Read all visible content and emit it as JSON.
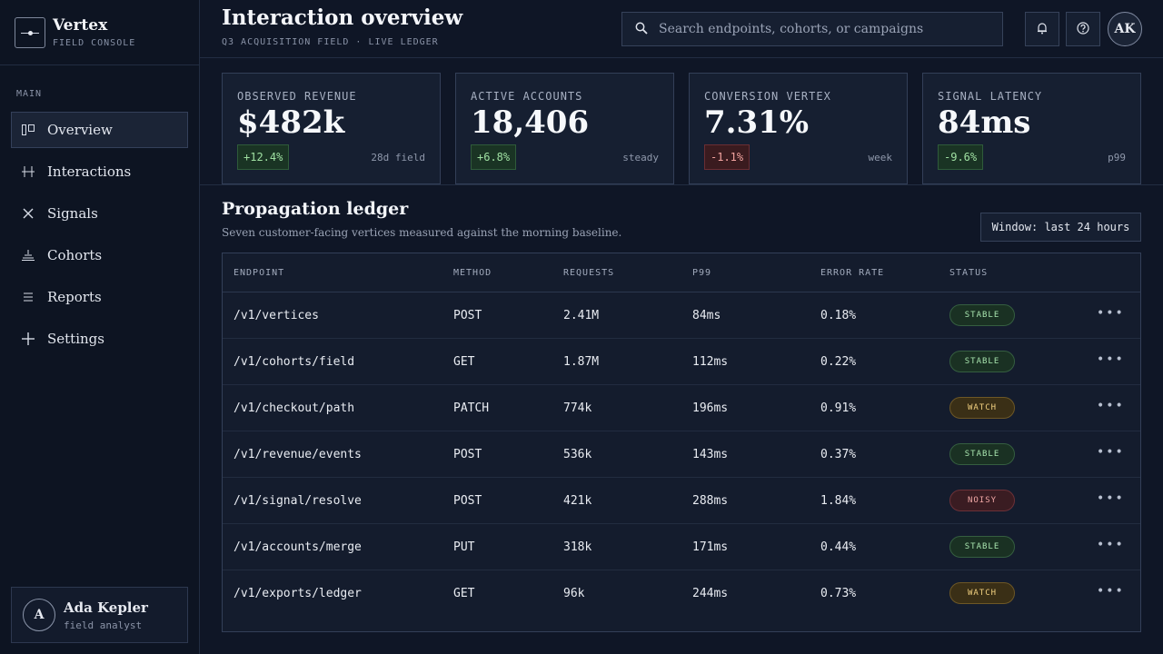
{
  "app": {
    "name": "Vertex",
    "subtitle": "FIELD CONSOLE"
  },
  "sidebar": {
    "section": "MAIN",
    "items": [
      {
        "label": "Overview",
        "icon": "overview-icon",
        "active": true
      },
      {
        "label": "Interactions",
        "icon": "sliders-icon",
        "active": false
      },
      {
        "label": "Signals",
        "icon": "close-x-icon",
        "active": false
      },
      {
        "label": "Cohorts",
        "icon": "stack-icon",
        "active": false
      },
      {
        "label": "Reports",
        "icon": "list-icon",
        "active": false
      },
      {
        "label": "Settings",
        "icon": "plus-icon",
        "active": false
      }
    ],
    "user": {
      "initial": "A",
      "name": "Ada Kepler",
      "role": "field analyst"
    }
  },
  "header": {
    "title": "Interaction overview",
    "subtitle": "Q3 ACQUISITION FIELD · LIVE LEDGER",
    "search_placeholder": "Search endpoints, cohorts, or campaigns",
    "avatar": "AK"
  },
  "kpis": [
    {
      "label": "OBSERVED REVENUE",
      "value": "$482k",
      "delta": "+12.4%",
      "trend": "up",
      "note": "28d field"
    },
    {
      "label": "ACTIVE ACCOUNTS",
      "value": "18,406",
      "delta": "+6.8%",
      "trend": "up",
      "note": "steady"
    },
    {
      "label": "CONVERSION VERTEX",
      "value": "7.31%",
      "delta": "-1.1%",
      "trend": "down",
      "note": "week"
    },
    {
      "label": "SIGNAL LATENCY",
      "value": "84ms",
      "delta": "-9.6%",
      "trend": "up",
      "note": "p99"
    }
  ],
  "ledger": {
    "title": "Propagation ledger",
    "subtitle": "Seven customer-facing vertices measured against the morning baseline.",
    "window_label": "Window: last 24 hours",
    "columns": [
      "ENDPOINT",
      "METHOD",
      "REQUESTS",
      "P99",
      "ERROR RATE",
      "STATUS"
    ],
    "rows": [
      {
        "endpoint": "/v1/vertices",
        "method": "POST",
        "requests": "2.41M",
        "p99": "84ms",
        "error": "0.18%",
        "status": "STABLE"
      },
      {
        "endpoint": "/v1/cohorts/field",
        "method": "GET",
        "requests": "1.87M",
        "p99": "112ms",
        "error": "0.22%",
        "status": "STABLE"
      },
      {
        "endpoint": "/v1/checkout/path",
        "method": "PATCH",
        "requests": "774k",
        "p99": "196ms",
        "error": "0.91%",
        "status": "WATCH"
      },
      {
        "endpoint": "/v1/revenue/events",
        "method": "POST",
        "requests": "536k",
        "p99": "143ms",
        "error": "0.37%",
        "status": "STABLE"
      },
      {
        "endpoint": "/v1/signal/resolve",
        "method": "POST",
        "requests": "421k",
        "p99": "288ms",
        "error": "1.84%",
        "status": "NOISY"
      },
      {
        "endpoint": "/v1/accounts/merge",
        "method": "PUT",
        "requests": "318k",
        "p99": "171ms",
        "error": "0.44%",
        "status": "STABLE"
      },
      {
        "endpoint": "/v1/exports/ledger",
        "method": "GET",
        "requests": "96k",
        "p99": "244ms",
        "error": "0.73%",
        "status": "WATCH"
      }
    ],
    "row_action": "•••"
  }
}
